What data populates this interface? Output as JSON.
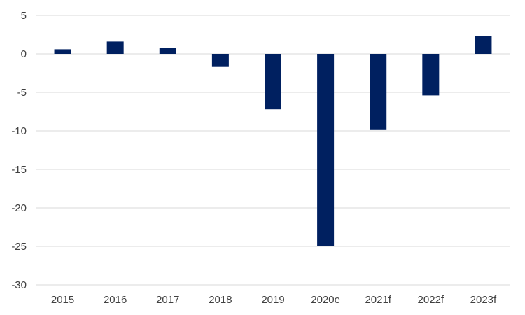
{
  "chart_data": {
    "type": "bar",
    "categories": [
      "2015",
      "2016",
      "2017",
      "2018",
      "2019",
      "2020e",
      "2021f",
      "2022f",
      "2023f"
    ],
    "values": [
      0.6,
      1.6,
      0.8,
      -1.7,
      -7.2,
      -25.0,
      -9.8,
      -5.4,
      2.3
    ],
    "ylim": [
      -30,
      5
    ],
    "yticks": [
      5,
      0,
      -5,
      -10,
      -15,
      -20,
      -25,
      -30
    ],
    "ytick_labels": [
      "5",
      "0",
      "-5",
      "-10",
      "-15",
      "-20",
      "-25",
      "-30"
    ],
    "grid": true,
    "bar_color": "#002060",
    "grid_color": "#d9d9d9",
    "title": "",
    "xlabel": "",
    "ylabel": ""
  }
}
